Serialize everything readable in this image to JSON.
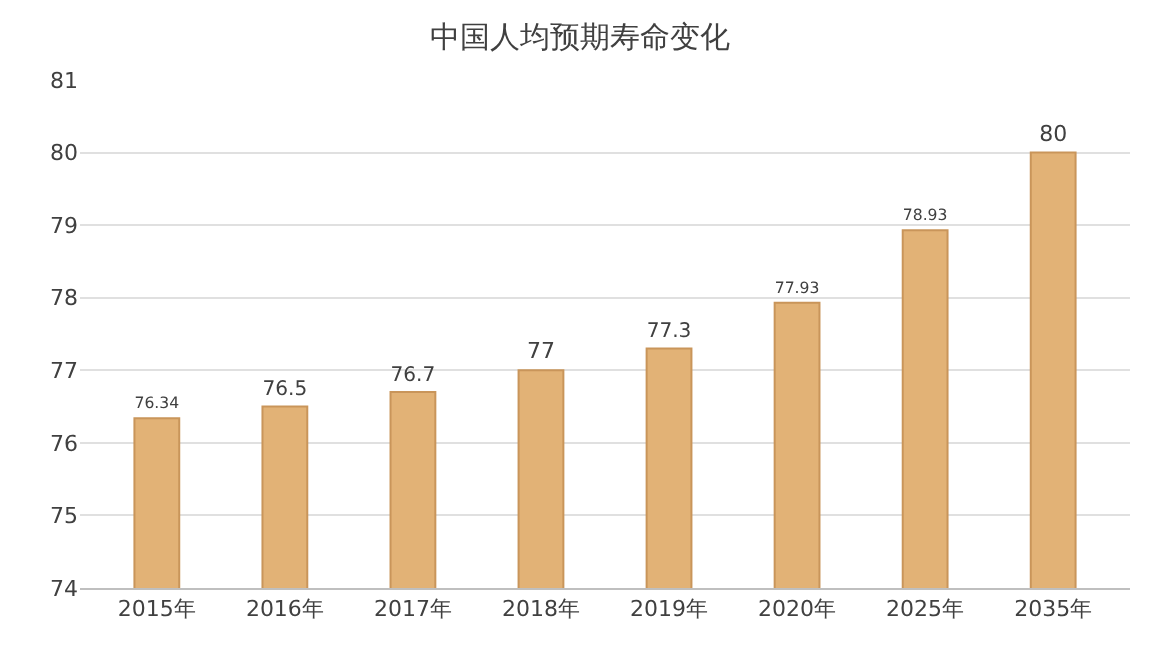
{
  "chart_data": {
    "type": "bar",
    "title": "中国人均预期寿命变化",
    "categories": [
      "2015年",
      "2016年",
      "2017年",
      "2018年",
      "2019年",
      "2020年",
      "2025年",
      "2035年"
    ],
    "values": [
      76.34,
      76.5,
      76.7,
      77,
      77.3,
      77.93,
      78.93,
      80
    ],
    "color": "#e2b276",
    "ylim": [
      74,
      81
    ],
    "yticks": [
      74,
      75,
      76,
      77,
      78,
      79,
      80,
      81
    ],
    "grid": "y",
    "data_labels": true
  }
}
